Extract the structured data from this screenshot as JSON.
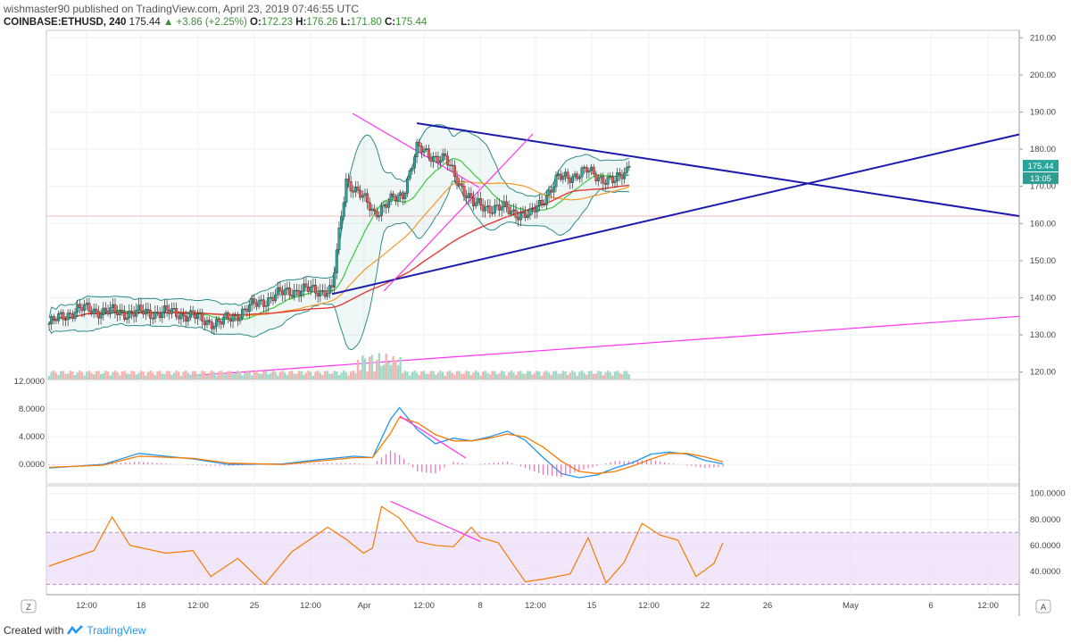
{
  "header": {
    "publisher_line": "wishmaster90 published on TradingView.com, April 23, 2019 07:46:55 UTC",
    "symbol": "COINBASE:ETHUSD, 240",
    "last": "175.44",
    "change": "▲ +3.86 (+2.25%)",
    "ohlc_o_label": "O:",
    "ohlc_o": "172.23",
    "ohlc_h_label": "H:",
    "ohlc_h": "176.26",
    "ohlc_l_label": "L:",
    "ohlc_l": "171.80",
    "ohlc_c_label": "C:",
    "ohlc_c": "175.44"
  },
  "footer": {
    "created_with": "Created with",
    "brand": "TradingView"
  },
  "corner_labels": {
    "left": "Z",
    "right": "A"
  },
  "colors": {
    "up": "#26a69a",
    "down": "#ef5350",
    "trend_blue": "#1a1aad",
    "trend_magenta": "#ff33ee",
    "ma_green": "#3cc83c",
    "ma_orange": "#f59a23",
    "ma_red": "#e53935",
    "bb": "#2d8a8a",
    "macd": "#2196f3",
    "signal": "#f57c00",
    "rsi": "#f57c00",
    "rsi_band": "#e9d5f7"
  },
  "chart_data": [
    {
      "type": "candlestick",
      "pane": "price",
      "title": "COINBASE:ETHUSD, 240",
      "y_ticks": [
        "210.00",
        "200.00",
        "190.00",
        "180.00",
        "170.00",
        "160.00",
        "150.00",
        "140.00",
        "130.00",
        "120.00"
      ],
      "ylim": [
        118,
        212
      ],
      "x_ticks": [
        "12:00",
        "18",
        "12:00",
        "25",
        "12:00",
        "Apr",
        "12:00",
        "8",
        "12:00",
        "15",
        "12:00",
        "22",
        "26",
        "May",
        "6",
        "12:00"
      ],
      "price_label": "175.44",
      "countdown_label": "13:05",
      "horizontal_line": 162,
      "key_points": [
        {
          "date": "Mar 13",
          "close": 133
        },
        {
          "date": "Mar 15",
          "close": 137
        },
        {
          "date": "Mar 18",
          "close": 136
        },
        {
          "date": "Mar 22",
          "close": 136
        },
        {
          "date": "Mar 25",
          "close": 133
        },
        {
          "date": "Mar 28",
          "close": 139
        },
        {
          "date": "Mar 30",
          "close": 142
        },
        {
          "date": "Apr 2",
          "close": 142
        },
        {
          "date": "Apr 3",
          "close": 172
        },
        {
          "date": "Apr 5",
          "close": 163
        },
        {
          "date": "Apr 7",
          "close": 168
        },
        {
          "date": "Apr 8",
          "close": 180
        },
        {
          "date": "Apr 10",
          "close": 177
        },
        {
          "date": "Apr 12",
          "close": 165
        },
        {
          "date": "Apr 14",
          "close": 164
        },
        {
          "date": "Apr 16",
          "close": 162
        },
        {
          "date": "Apr 18",
          "close": 172
        },
        {
          "date": "Apr 20",
          "close": 174
        },
        {
          "date": "Apr 22",
          "close": 171
        },
        {
          "date": "Apr 23",
          "close": 175.44
        }
      ],
      "trendlines": [
        {
          "name": "descending resistance",
          "from": [
            "Apr 8",
            187
          ],
          "to": [
            "May 14",
            162
          ]
        },
        {
          "name": "ascending support",
          "from": [
            "Apr 2",
            141
          ],
          "to": [
            "May 14",
            184
          ]
        },
        {
          "name": "long-term support",
          "from": [
            "Mar 23",
            119
          ],
          "to": [
            "May 14",
            135
          ]
        }
      ]
    },
    {
      "type": "line",
      "pane": "macd",
      "y_ticks": [
        "12.0000",
        "8.0000",
        "4.0000",
        "0.0000"
      ],
      "ylim": [
        -2.8,
        12
      ],
      "series": [
        {
          "key": "macd",
          "points": [
            [
              0,
              -0.5
            ],
            [
              6,
              0
            ],
            [
              10,
              1.6
            ],
            [
              16,
              0.8
            ],
            [
              20,
              0
            ],
            [
              26,
              0.1
            ],
            [
              30,
              0.7
            ],
            [
              34,
              1.2
            ],
            [
              36,
              1
            ],
            [
              38,
              6.5
            ],
            [
              39,
              8.2
            ],
            [
              41,
              5
            ],
            [
              43,
              3
            ],
            [
              45,
              3.8
            ],
            [
              47,
              3.4
            ],
            [
              49,
              4
            ],
            [
              51,
              4.8
            ],
            [
              53,
              3.5
            ],
            [
              55,
              1
            ],
            [
              57,
              -1.3
            ],
            [
              59,
              -1.9
            ],
            [
              61,
              -1.5
            ],
            [
              63,
              -0.5
            ],
            [
              65,
              0.3
            ],
            [
              67,
              1.5
            ],
            [
              69,
              1.8
            ],
            [
              71,
              1.5
            ],
            [
              73,
              0.6
            ],
            [
              75,
              0.1
            ]
          ]
        },
        {
          "key": "signal",
          "points": [
            [
              0,
              -0.4
            ],
            [
              6,
              -0.1
            ],
            [
              10,
              1.2
            ],
            [
              16,
              0.9
            ],
            [
              20,
              0.2
            ],
            [
              26,
              0
            ],
            [
              30,
              0.5
            ],
            [
              34,
              1
            ],
            [
              36,
              1
            ],
            [
              38,
              4.5
            ],
            [
              39,
              6.8
            ],
            [
              41,
              6
            ],
            [
              43,
              4.3
            ],
            [
              45,
              3.4
            ],
            [
              47,
              3.4
            ],
            [
              49,
              3.8
            ],
            [
              51,
              4.4
            ],
            [
              53,
              4
            ],
            [
              55,
              2.5
            ],
            [
              57,
              0.5
            ],
            [
              59,
              -1
            ],
            [
              61,
              -1.3
            ],
            [
              63,
              -1
            ],
            [
              65,
              -0.2
            ],
            [
              67,
              0.8
            ],
            [
              69,
              1.6
            ],
            [
              71,
              1.6
            ],
            [
              73,
              1.1
            ],
            [
              75,
              0.4
            ]
          ]
        }
      ]
    },
    {
      "type": "line",
      "pane": "rsi",
      "y_ticks": [
        "100.0000",
        "80.0000",
        "60.0000",
        "40.0000"
      ],
      "ylim": [
        22,
        106
      ],
      "band": [
        30,
        70
      ],
      "series": [
        {
          "key": "rsi",
          "points": [
            [
              0,
              44
            ],
            [
              5,
              56
            ],
            [
              7,
              82
            ],
            [
              9,
              60
            ],
            [
              13,
              54
            ],
            [
              16,
              56
            ],
            [
              18,
              36
            ],
            [
              21,
              50
            ],
            [
              24,
              30
            ],
            [
              27,
              55
            ],
            [
              31,
              74
            ],
            [
              33,
              65
            ],
            [
              35,
              54
            ],
            [
              36,
              58
            ],
            [
              37,
              90
            ],
            [
              39,
              81
            ],
            [
              41,
              63
            ],
            [
              43,
              60
            ],
            [
              45,
              59
            ],
            [
              47,
              74
            ],
            [
              48,
              66
            ],
            [
              50,
              62
            ],
            [
              53,
              32
            ],
            [
              55,
              34
            ],
            [
              58,
              38
            ],
            [
              60,
              66
            ],
            [
              62,
              31
            ],
            [
              64,
              47
            ],
            [
              66,
              77
            ],
            [
              68,
              68
            ],
            [
              70,
              64
            ],
            [
              72,
              36
            ],
            [
              74,
              46
            ],
            [
              75,
              62
            ]
          ]
        }
      ],
      "annotation": {
        "name": "rsi divergence",
        "from": [
          38,
          94
        ],
        "to": [
          48,
          63
        ]
      }
    }
  ]
}
